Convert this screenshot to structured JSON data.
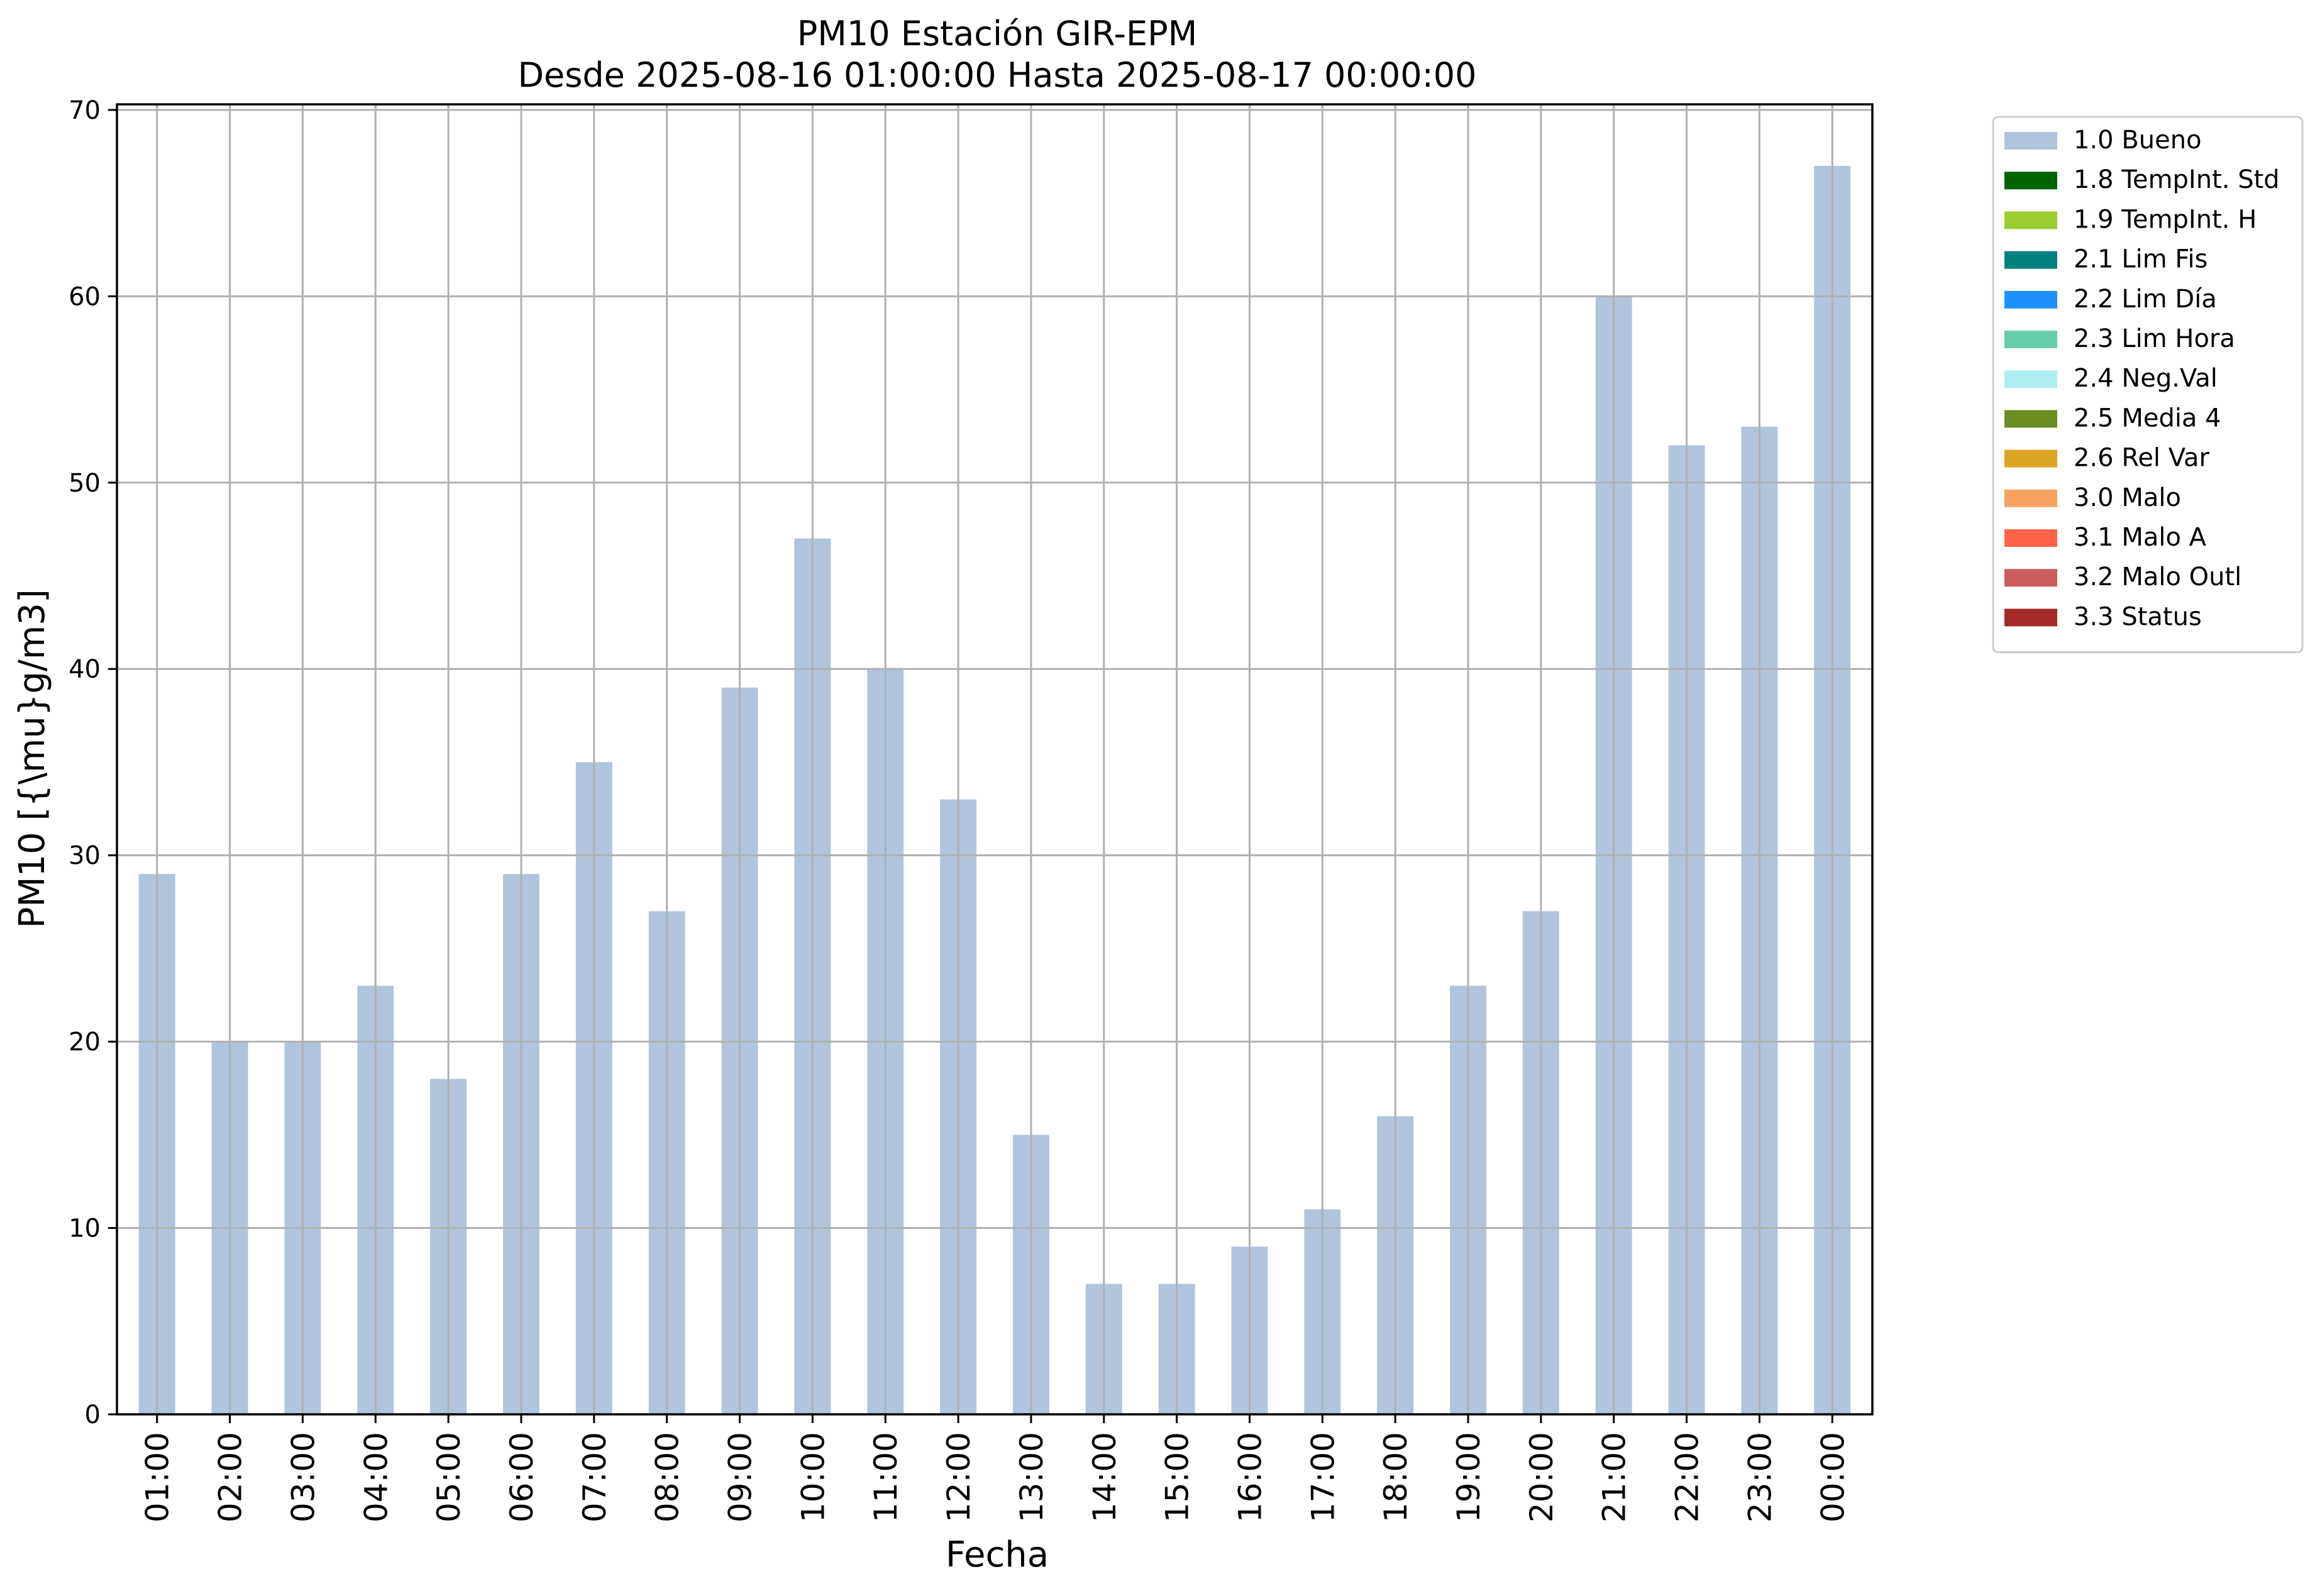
{
  "chart_data": {
    "type": "bar",
    "title": "PM10 Estación GIR-EPM",
    "subtitle": "Desde 2025-08-16 01:00:00 Hasta 2025-08-17 00:00:00",
    "xlabel": "Fecha",
    "ylabel": "PM10 [{\\mu}g/m3]",
    "categories": [
      "01:00",
      "02:00",
      "03:00",
      "04:00",
      "05:00",
      "06:00",
      "07:00",
      "08:00",
      "09:00",
      "10:00",
      "11:00",
      "12:00",
      "13:00",
      "14:00",
      "15:00",
      "16:00",
      "17:00",
      "18:00",
      "19:00",
      "20:00",
      "21:00",
      "22:00",
      "23:00",
      "00:00"
    ],
    "series": [
      {
        "name": "1.0 Bueno",
        "color": "#b0c4de",
        "values": [
          29,
          20,
          20,
          23,
          18,
          29,
          35,
          27,
          39,
          47,
          40,
          33,
          15,
          7,
          7,
          9,
          11,
          16,
          23,
          27,
          60,
          52,
          53,
          67
        ]
      }
    ],
    "ylim": [
      0,
      70.3
    ],
    "yticks": [
      0,
      10,
      20,
      30,
      40,
      50,
      60,
      70
    ],
    "grid": true,
    "legend_position": "outside-right",
    "legend": [
      {
        "label": "1.0 Bueno",
        "color": "#b0c4de"
      },
      {
        "label": "1.8 TempInt. Std",
        "color": "#006400"
      },
      {
        "label": "1.9 TempInt. H",
        "color": "#9acd32"
      },
      {
        "label": "2.1 Lim Fis",
        "color": "#008080"
      },
      {
        "label": "2.2 Lim Día",
        "color": "#1e90ff"
      },
      {
        "label": "2.3 Lim Hora",
        "color": "#66cdaa"
      },
      {
        "label": "2.4 Neg.Val",
        "color": "#afeeee"
      },
      {
        "label": "2.5 Media 4",
        "color": "#6b8e23"
      },
      {
        "label": "2.6 Rel Var",
        "color": "#daa520"
      },
      {
        "label": "3.0 Malo",
        "color": "#f4a460"
      },
      {
        "label": "3.1 Malo A",
        "color": "#ff6347"
      },
      {
        "label": "3.2 Malo Outl",
        "color": "#cd5c5c"
      },
      {
        "label": "3.3 Status",
        "color": "#a52a2a"
      }
    ]
  }
}
